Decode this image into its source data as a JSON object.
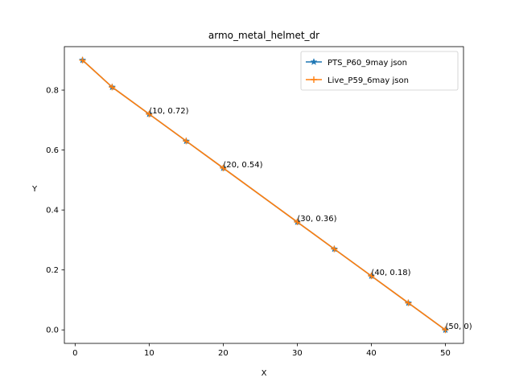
{
  "chart_data": {
    "type": "line",
    "title": "armo_metal_helmet_dr",
    "xlabel": "X",
    "ylabel": "Y",
    "xlim": [
      -1.45,
      52.45
    ],
    "ylim": [
      -0.045,
      0.945
    ],
    "xticks": [
      0,
      10,
      20,
      30,
      40,
      50
    ],
    "yticks": [
      0.0,
      0.2,
      0.4,
      0.6,
      0.8
    ],
    "xtick_labels": [
      "0",
      "10",
      "20",
      "30",
      "40",
      "50"
    ],
    "ytick_labels": [
      "0.0",
      "0.2",
      "0.4",
      "0.6",
      "0.8"
    ],
    "grid": false,
    "legend_position": "top-right",
    "series": [
      {
        "name": "PTS_P60_9may json",
        "color": "#1f77b4",
        "marker": "star",
        "x": [
          1,
          5,
          10,
          15,
          20,
          30,
          35,
          40,
          45,
          50
        ],
        "y": [
          0.9,
          0.81,
          0.72,
          0.63,
          0.54,
          0.36,
          0.27,
          0.18,
          0.09,
          0.0
        ]
      },
      {
        "name": "Live_P59_6may json",
        "color": "#ff7f0e",
        "marker": "plus",
        "x": [
          1,
          5,
          10,
          15,
          20,
          30,
          35,
          40,
          45,
          50
        ],
        "y": [
          0.9,
          0.81,
          0.72,
          0.63,
          0.54,
          0.36,
          0.27,
          0.18,
          0.09,
          0.0
        ]
      }
    ],
    "annotations": [
      {
        "x": 10,
        "y": 0.72,
        "text": "(10, 0.72)"
      },
      {
        "x": 20,
        "y": 0.54,
        "text": "(20, 0.54)"
      },
      {
        "x": 30,
        "y": 0.36,
        "text": "(30, 0.36)"
      },
      {
        "x": 40,
        "y": 0.18,
        "text": "(40, 0.18)"
      },
      {
        "x": 50,
        "y": 0,
        "text": "(50, 0)"
      }
    ]
  }
}
